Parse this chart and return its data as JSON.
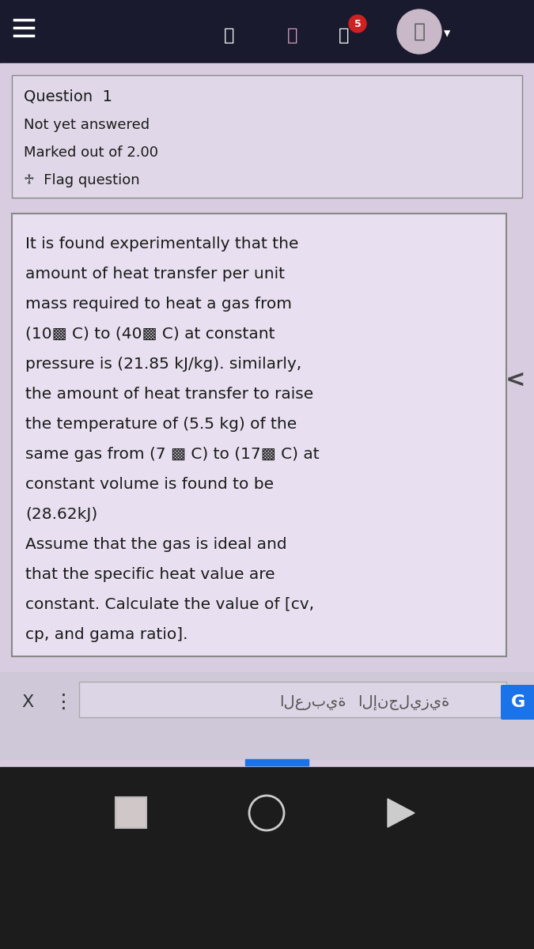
{
  "bg_top_color": "#1a1a2e",
  "bg_main_color": "#d8cce0",
  "bg_bottom_color": "#111111",
  "question_label": "Question  1",
  "not_answered": "Not yet answered",
  "marked_out": "Marked out of 2.00",
  "flag_question": "♱  Flag question",
  "body_text_lines": [
    "It is found experimentally that the",
    "amount of heat transfer per unit",
    "mass required to heat a gas from",
    "(10▩ C) to (40▩ C) at constant",
    "pressure is (21.85 kJ/kg). similarly,",
    "the amount of heat transfer to raise",
    "the temperature of (5.5 kg) of the",
    "same gas from (7 ▩ C) to (17▩ C) at",
    "constant volume is found to be",
    "(28.62kJ)",
    "Assume that the gas is ideal and",
    "that the specific heat value are",
    "constant. Calculate the value of [cv,",
    "cp, and gama ratio]."
  ],
  "arabic_label": "العربية",
  "english_label": "الإنجليزية",
  "text_color": "#1a1a1a",
  "header_text_color": "#cccccc",
  "box_border_color": "#888888",
  "toolbar_color": "#d0c8d8",
  "chevron_color": "#444444",
  "google_btn_color": "#1a73e8",
  "x_btn_color": "#333333",
  "dots_color": "#333333",
  "arabic_text_color": "#555555",
  "nav_bar_color": "#1c1c1c",
  "nav_icon_color": "#ffffff",
  "nav_circle_color": "#cccccc",
  "header_icon_bell": "#d8a0c0",
  "header_icon_chat_bg": "#cc2222",
  "blue_bar_color": "#1a73e8"
}
